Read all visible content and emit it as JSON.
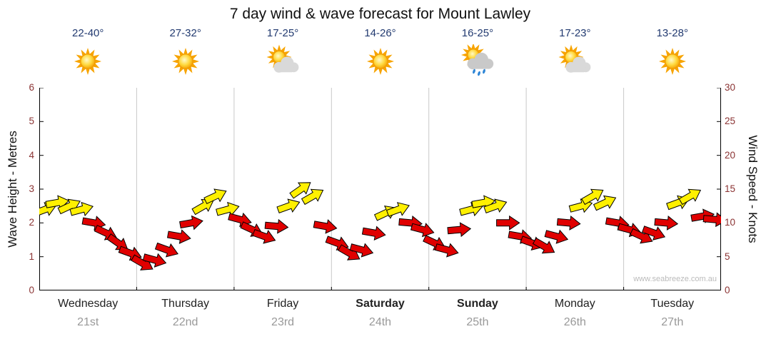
{
  "title": "7 day wind & wave forecast for Mount Lawley",
  "watermark": "www.seabreeze.com.au",
  "axes": {
    "left_title": "Wave Height - Metres",
    "right_title": "Wind Speed - Knots",
    "left_ticks": [
      "6",
      "5",
      "4",
      "3",
      "2",
      "1",
      "0"
    ],
    "right_ticks": [
      "30",
      "25",
      "20",
      "15",
      "10",
      "5",
      "0"
    ]
  },
  "colors": {
    "arrow_yellow": "#fff000",
    "arrow_red": "#e00000",
    "arrow_outline": "#000000",
    "grid": "#c8c8c8",
    "axis": "#000000",
    "tick_label": "#8b3333",
    "temp_label": "#223a70",
    "day_label": "#222222",
    "date_label": "#999999",
    "watermark": "#bbbbbb"
  },
  "chart_data": {
    "type": "scatter",
    "title": "7 day wind & wave forecast for Mount Lawley",
    "ylabel_left": "Wave Height - Metres",
    "ylabel_right": "Wind Speed - Knots",
    "ylim_left": [
      0,
      6
    ],
    "ylim_right": [
      0,
      30
    ],
    "grid": "vertical-day-boundaries",
    "points_per_day": 8,
    "x_categories": [
      "Wednesday 21st",
      "Thursday 22nd",
      "Friday 23rd",
      "Saturday 24th",
      "Sunday 25th",
      "Monday 26th",
      "Tuesday 27th"
    ],
    "days": [
      {
        "name": "Wednesday",
        "date": "21st",
        "temp": "22-40°",
        "icon": "sun",
        "bold": false,
        "wind": {
          "knots": [
            12,
            13,
            12.5,
            12,
            10,
            8.5,
            7,
            5.5
          ],
          "angles": [
            -20,
            -10,
            -25,
            -15,
            10,
            25,
            35,
            20
          ],
          "colors": [
            "y",
            "y",
            "y",
            "y",
            "r",
            "r",
            "r",
            "r"
          ]
        }
      },
      {
        "name": "Thursday",
        "date": "22nd",
        "temp": "27-32°",
        "icon": "sun",
        "bold": false,
        "wind": {
          "knots": [
            4,
            4.5,
            6,
            8,
            10,
            12.5,
            14,
            12
          ],
          "angles": [
            30,
            15,
            20,
            10,
            -10,
            -30,
            -25,
            -15
          ],
          "colors": [
            "r",
            "r",
            "r",
            "r",
            "r",
            "y",
            "y",
            "y"
          ]
        }
      },
      {
        "name": "Friday",
        "date": "23rd",
        "temp": "17-25°",
        "icon": "sun-cloud",
        "bold": false,
        "wind": {
          "knots": [
            10.5,
            9,
            8,
            9.5,
            12.5,
            15,
            14,
            9.5
          ],
          "angles": [
            15,
            25,
            20,
            5,
            -20,
            -35,
            -30,
            10
          ],
          "colors": [
            "r",
            "r",
            "r",
            "r",
            "y",
            "y",
            "y",
            "r"
          ]
        }
      },
      {
        "name": "Saturday",
        "date": "24th",
        "temp": "14-26°",
        "icon": "sun",
        "bold": true,
        "wind": {
          "knots": [
            7,
            5.5,
            6,
            8.5,
            11.5,
            12,
            10,
            9
          ],
          "angles": [
            20,
            30,
            15,
            10,
            -25,
            -20,
            5,
            15
          ],
          "colors": [
            "r",
            "r",
            "r",
            "r",
            "y",
            "y",
            "r",
            "r"
          ]
        }
      },
      {
        "name": "Sunday",
        "date": "25th",
        "temp": "16-25°",
        "icon": "sun-cloud-rain",
        "bold": true,
        "wind": {
          "knots": [
            7,
            6,
            9,
            12,
            13,
            12.5,
            10,
            8
          ],
          "angles": [
            25,
            15,
            -5,
            -15,
            -10,
            -20,
            0,
            10
          ],
          "colors": [
            "r",
            "r",
            "r",
            "y",
            "y",
            "y",
            "r",
            "r"
          ]
        }
      },
      {
        "name": "Monday",
        "date": "26th",
        "temp": "17-23°",
        "icon": "sun-cloud",
        "bold": false,
        "wind": {
          "knots": [
            7,
            6.5,
            8,
            10,
            12.5,
            14,
            13,
            10
          ],
          "angles": [
            20,
            30,
            15,
            5,
            -15,
            -30,
            -25,
            10
          ],
          "colors": [
            "r",
            "r",
            "r",
            "r",
            "y",
            "y",
            "y",
            "r"
          ]
        }
      },
      {
        "name": "Tuesday",
        "date": "27th",
        "temp": "13-28°",
        "icon": "sun",
        "bold": false,
        "wind": {
          "knots": [
            9,
            8,
            8.5,
            10,
            13,
            14,
            11,
            10.5
          ],
          "angles": [
            15,
            25,
            20,
            5,
            -20,
            -30,
            -10,
            5
          ],
          "colors": [
            "r",
            "r",
            "r",
            "r",
            "y",
            "y",
            "r",
            "r"
          ]
        }
      }
    ]
  }
}
